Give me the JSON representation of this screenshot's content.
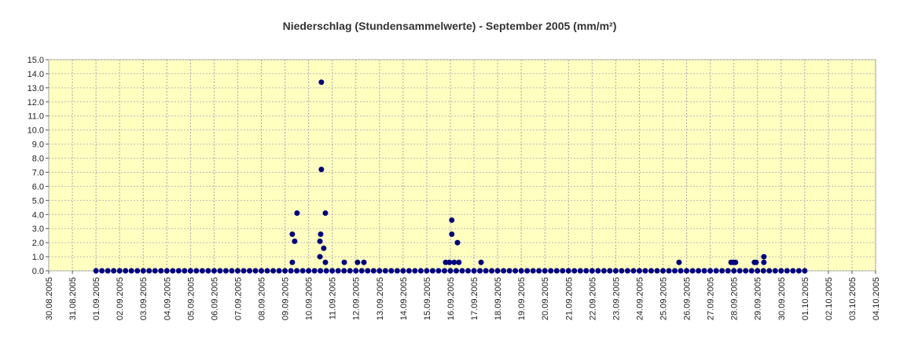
{
  "chart_data": {
    "type": "scatter",
    "title": "Niederschlag (Stundensammelwerte) - September 2005 (mm/m²)",
    "xlim": [
      38594,
      38629
    ],
    "ylim": [
      0,
      15
    ],
    "grid": true,
    "yticks": [
      {
        "value": 0,
        "label": "0.0"
      },
      {
        "value": 1,
        "label": "1.0"
      },
      {
        "value": 2,
        "label": "2.0"
      },
      {
        "value": 3,
        "label": "3.0"
      },
      {
        "value": 4,
        "label": "4.0"
      },
      {
        "value": 5,
        "label": "5.0"
      },
      {
        "value": 6,
        "label": "6.0"
      },
      {
        "value": 7,
        "label": "7.0"
      },
      {
        "value": 8,
        "label": "8.0"
      },
      {
        "value": 9,
        "label": "9.0"
      },
      {
        "value": 10,
        "label": "10.0"
      },
      {
        "value": 11,
        "label": "11.0"
      },
      {
        "value": 12,
        "label": "12.0"
      },
      {
        "value": 13,
        "label": "13.0"
      },
      {
        "value": 14,
        "label": "14.0"
      },
      {
        "value": 15,
        "label": "15.0"
      }
    ],
    "xticks": [
      {
        "value": 38594,
        "label": "30.08.2005"
      },
      {
        "value": 38595,
        "label": "31.08.2005"
      },
      {
        "value": 38596,
        "label": "01.09.2005"
      },
      {
        "value": 38597,
        "label": "02.09.2005"
      },
      {
        "value": 38598,
        "label": "03.09.2005"
      },
      {
        "value": 38599,
        "label": "04.09.2005"
      },
      {
        "value": 38600,
        "label": "05.09.2005"
      },
      {
        "value": 38601,
        "label": "06.09.2005"
      },
      {
        "value": 38602,
        "label": "07.09.2005"
      },
      {
        "value": 38603,
        "label": "08.09.2005"
      },
      {
        "value": 38604,
        "label": "09.09.2005"
      },
      {
        "value": 38605,
        "label": "10.09.2005"
      },
      {
        "value": 38606,
        "label": "11.09.2005"
      },
      {
        "value": 38607,
        "label": "12.09.2005"
      },
      {
        "value": 38608,
        "label": "13.09.2005"
      },
      {
        "value": 38609,
        "label": "14.09.2005"
      },
      {
        "value": 38610,
        "label": "15.09.2005"
      },
      {
        "value": 38611,
        "label": "16.09.2005"
      },
      {
        "value": 38612,
        "label": "17.09.2005"
      },
      {
        "value": 38613,
        "label": "18.09.2005"
      },
      {
        "value": 38614,
        "label": "19.09.2005"
      },
      {
        "value": 38615,
        "label": "20.09.2005"
      },
      {
        "value": 38616,
        "label": "21.09.2005"
      },
      {
        "value": 38617,
        "label": "22.09.2005"
      },
      {
        "value": 38618,
        "label": "23.09.2005"
      },
      {
        "value": 38619,
        "label": "24.09.2005"
      },
      {
        "value": 38620,
        "label": "25.09.2005"
      },
      {
        "value": 38621,
        "label": "26.09.2005"
      },
      {
        "value": 38622,
        "label": "27.09.2005"
      },
      {
        "value": 38623,
        "label": "28.09.2005"
      },
      {
        "value": 38624,
        "label": "29.09.2005"
      },
      {
        "value": 38625,
        "label": "30.09.2005"
      },
      {
        "value": 38626,
        "label": "01.10.2005"
      },
      {
        "value": 38627,
        "label": "02.10.2005"
      },
      {
        "value": 38628,
        "label": "03.10.2005"
      },
      {
        "value": 38629,
        "label": "04.10.2005"
      }
    ],
    "series": [
      {
        "color": "#000080",
        "x": [
          38596,
          38596.25,
          38596.5,
          38596.75,
          38597,
          38597.25,
          38597.5,
          38597.75,
          38598,
          38598.25,
          38598.5,
          38598.75,
          38599,
          38599.25,
          38599.5,
          38599.75,
          38600,
          38600.25,
          38600.5,
          38600.75,
          38601,
          38601.25,
          38601.5,
          38601.75,
          38602,
          38602.25,
          38602.5,
          38602.75,
          38603,
          38603.25,
          38603.5,
          38603.75,
          38604,
          38604.25,
          38604.5,
          38604.75,
          38605,
          38605.25,
          38605.5,
          38605.75,
          38606,
          38606.25,
          38606.5,
          38606.75,
          38607,
          38607.25,
          38607.5,
          38607.75,
          38608,
          38608.25,
          38608.5,
          38608.75,
          38609,
          38609.25,
          38609.5,
          38609.75,
          38610,
          38610.25,
          38610.5,
          38610.75,
          38611,
          38611.25,
          38611.5,
          38611.75,
          38612,
          38612.25,
          38612.5,
          38612.75,
          38613,
          38613.25,
          38613.5,
          38613.75,
          38614,
          38614.25,
          38614.5,
          38614.75,
          38615,
          38615.25,
          38615.5,
          38615.75,
          38616,
          38616.25,
          38616.5,
          38616.75,
          38617,
          38617.25,
          38617.5,
          38617.75,
          38618,
          38618.25,
          38618.5,
          38618.75,
          38619,
          38619.25,
          38619.5,
          38619.75,
          38620,
          38620.25,
          38620.5,
          38620.75,
          38621,
          38621.25,
          38621.5,
          38621.75,
          38622,
          38622.25,
          38622.5,
          38622.75,
          38623,
          38623.25,
          38623.5,
          38623.75,
          38624,
          38624.25,
          38624.5,
          38624.75,
          38625,
          38625.25,
          38625.5,
          38625.75,
          38626
        ],
        "values": [
          0,
          0,
          0,
          0,
          0,
          0,
          0,
          0,
          0,
          0,
          0,
          0,
          0,
          0,
          0,
          0,
          0,
          0,
          0,
          0,
          0,
          0,
          0,
          0,
          0,
          0,
          0,
          0,
          0,
          0,
          0,
          0,
          0,
          0,
          0,
          0,
          0,
          0,
          0,
          0,
          0,
          0,
          0,
          0,
          0,
          0,
          0,
          0,
          0,
          0,
          0,
          0,
          0,
          0,
          0,
          0,
          0,
          0,
          0,
          0,
          0,
          0,
          0,
          0,
          0,
          0,
          0,
          0,
          0,
          0,
          0,
          0,
          0,
          0,
          0,
          0,
          0,
          0,
          0,
          0,
          0,
          0,
          0,
          0,
          0,
          0,
          0,
          0,
          0,
          0,
          0,
          0,
          0,
          0,
          0,
          0,
          0,
          0,
          0,
          0,
          0,
          0,
          0,
          0,
          0,
          0,
          0,
          0,
          0,
          0,
          0,
          0,
          0,
          0,
          0,
          0,
          0,
          0,
          0,
          0,
          0
        ]
      },
      {
        "color": "#000080",
        "x": [
          38604.31,
          38604.31,
          38604.41,
          38604.51,
          38605.48,
          38605.48,
          38605.51,
          38605.54,
          38605.54,
          38605.64,
          38605.71,
          38605.71,
          38606.51,
          38607.07,
          38607.34,
          38610.8,
          38610.96,
          38611.06,
          38611.06,
          38611.16,
          38611.3,
          38611.36,
          38612.3,
          38620.68,
          38622.88,
          38622.98,
          38623.07,
          38623.87,
          38623.94,
          38624.27,
          38624.27
        ],
        "values": [
          2.6,
          0.6,
          2.1,
          4.1,
          1.0,
          2.1,
          2.6,
          13.4,
          7.2,
          1.6,
          4.1,
          0.6,
          0.6,
          0.6,
          0.6,
          0.6,
          0.6,
          2.6,
          3.6,
          0.6,
          2.0,
          0.6,
          0.6,
          0.6,
          0.6,
          0.6,
          0.6,
          0.6,
          0.6,
          0.6,
          1.0
        ]
      }
    ]
  }
}
